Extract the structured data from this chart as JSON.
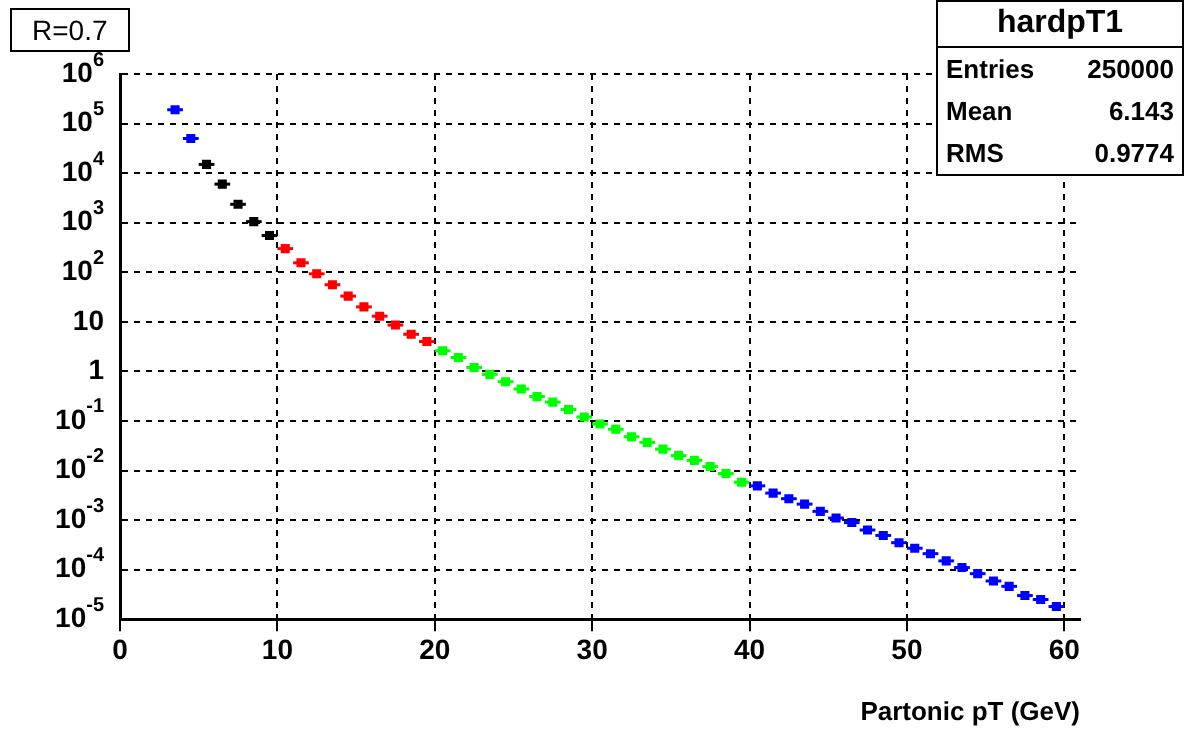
{
  "chart_data": {
    "type": "scatter",
    "title": "R=0.7",
    "xlabel": "Partonic pT (GeV)",
    "annotations": [
      "hardpT1",
      "Entries",
      "250000",
      "Mean",
      "6.143",
      "RMS",
      "0.9774"
    ],
    "xlim": [
      0,
      61
    ],
    "xticks": [
      0,
      10,
      20,
      30,
      40,
      50,
      60
    ],
    "ylim": [
      1e-05,
      1000000
    ],
    "yticks": [
      {
        "value": 1e-05,
        "label": "10$^{-5}$"
      },
      {
        "value": 0.0001,
        "label": "10$^{-4}$"
      },
      {
        "value": 0.001,
        "label": "10$^{-3}$"
      },
      {
        "value": 0.01,
        "label": "10$^{-2}$"
      },
      {
        "value": 0.1,
        "label": "10$^{-1}$"
      },
      1,
      10,
      {
        "value": 100,
        "label": "10$^{2}$"
      },
      {
        "value": 1000,
        "label": "10$^{3}$"
      },
      {
        "value": 10000,
        "label": "10$^{4}$"
      },
      {
        "value": 100000,
        "label": "10$^{5}$"
      },
      {
        "value": 1000000,
        "label": "10$^{6}$"
      }
    ],
    "log": "y",
    "grid": true,
    "legend": false,
    "marker": "square",
    "series": [
      {
        "color": "#0000ff",
        "x": [
          3.5,
          4.5
        ],
        "values": [
          190000,
          50000
        ],
        "xerrors": [
          0.5,
          0.5
        ]
      },
      {
        "color": "#000000",
        "x": [
          5.5,
          6.5,
          7.5,
          8.5,
          9.5
        ],
        "values": [
          15000,
          6000,
          2350,
          1050,
          550
        ],
        "xerrors": [
          0.5,
          0.5,
          0.5,
          0.5,
          0.5
        ]
      },
      {
        "color": "#ff0000",
        "x": [
          10.5,
          11.5,
          12.5,
          13.5,
          14.5,
          15.5,
          16.5,
          17.5,
          18.5,
          19.5
        ],
        "values": [
          300,
          155,
          93,
          56,
          33,
          20,
          13,
          8.6,
          5.6,
          4.0
        ],
        "xerrors": [
          0.5,
          0.5,
          0.5,
          0.5,
          0.5,
          0.5,
          0.5,
          0.5,
          0.5,
          0.5
        ]
      },
      {
        "color": "#00ff00",
        "x": [
          20.5,
          21.5,
          22.5,
          23.5,
          24.5,
          25.5,
          26.5,
          27.5,
          28.5,
          29.5,
          30.5,
          31.5,
          32.5,
          33.5,
          34.5,
          35.5,
          36.5,
          37.5,
          38.5,
          39.5
        ],
        "values": [
          2.6,
          1.9,
          1.2,
          0.87,
          0.62,
          0.44,
          0.31,
          0.24,
          0.17,
          0.12,
          0.087,
          0.068,
          0.048,
          0.037,
          0.027,
          0.02,
          0.016,
          0.012,
          0.0087,
          0.0058
        ],
        "xerrors": [
          0.5,
          0.5,
          0.5,
          0.5,
          0.5,
          0.5,
          0.5,
          0.5,
          0.5,
          0.5,
          0.5,
          0.5,
          0.5,
          0.5,
          0.5,
          0.5,
          0.5,
          0.5,
          0.5,
          0.5
        ]
      },
      {
        "color": "#0000ff",
        "x": [
          40.5,
          41.5,
          42.5,
          43.5,
          44.5,
          45.5,
          46.5,
          47.5,
          48.5,
          49.5,
          50.5,
          51.5,
          52.5,
          53.5,
          54.5,
          55.5,
          56.5,
          57.5,
          58.5,
          59.5
        ],
        "values": [
          0.0049,
          0.0035,
          0.0027,
          0.0021,
          0.0015,
          0.0011,
          0.00089,
          0.00063,
          0.00049,
          0.00035,
          0.00027,
          0.00021,
          0.00015,
          0.00011,
          8.3e-05,
          5.9e-05,
          4.6e-05,
          3e-05,
          2.5e-05,
          1.8e-05
        ],
        "xerrors": [
          0.5,
          0.5,
          0.5,
          0.5,
          0.5,
          0.5,
          0.5,
          0.5,
          0.5,
          0.5,
          0.5,
          0.5,
          0.5,
          0.5,
          0.5,
          0.5,
          0.5,
          0.5,
          0.5,
          0.5
        ]
      }
    ]
  }
}
